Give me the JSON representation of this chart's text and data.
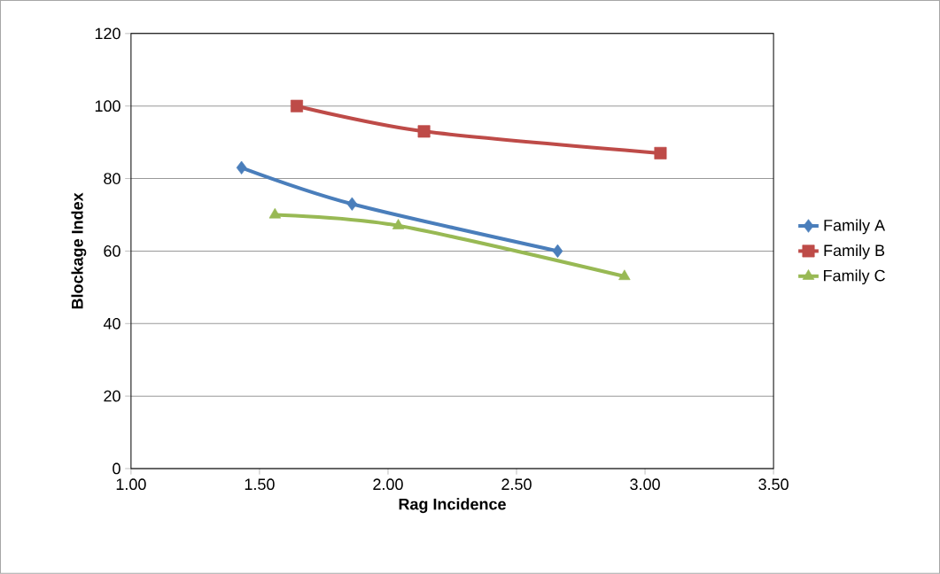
{
  "chart_data": {
    "type": "line",
    "xlabel": "Rag Incidence",
    "ylabel": "Blockage Index",
    "xlim": [
      1.0,
      3.5
    ],
    "xticks": [
      {
        "value": 1.0,
        "label": "1.00"
      },
      {
        "value": 1.5,
        "label": "1.50"
      },
      {
        "value": 2.0,
        "label": "2.00"
      },
      {
        "value": 2.5,
        "label": "2.50"
      },
      {
        "value": 3.0,
        "label": "3.00"
      },
      {
        "value": 3.5,
        "label": "3.50"
      }
    ],
    "ylim": [
      0,
      120
    ],
    "yticks": [
      0,
      20,
      40,
      60,
      80,
      100,
      120
    ],
    "grid": "y",
    "legend": "right",
    "series": [
      {
        "name": "Family A",
        "color": "#4a7ebb",
        "marker": "diamond",
        "x": [
          1.43,
          1.86,
          2.66
        ],
        "values": [
          83,
          73,
          60
        ]
      },
      {
        "name": "Family B",
        "color": "#be4b48",
        "marker": "square",
        "x": [
          1.645,
          2.14,
          3.06
        ],
        "values": [
          100,
          93,
          87
        ]
      },
      {
        "name": "Family C",
        "color": "#98b954",
        "marker": "triangle",
        "x": [
          1.56,
          2.04,
          2.92
        ],
        "values": [
          70,
          67,
          53
        ]
      }
    ]
  }
}
